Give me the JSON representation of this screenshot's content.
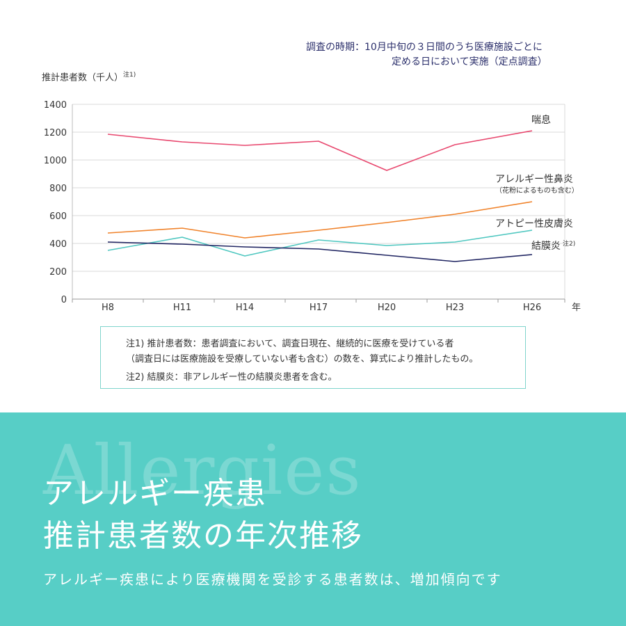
{
  "survey_note": {
    "line1": "調査の時期：10月中旬の３日間のうち医療施設ごとに",
    "line2": "定める日において実施（定点調査）"
  },
  "chart_data": {
    "type": "line",
    "ylabel": "推計患者数（千人）",
    "ylabel_note": "注1)",
    "xlabel": "年",
    "categories": [
      "H8",
      "H11",
      "H14",
      "H17",
      "H20",
      "H23",
      "H26"
    ],
    "ylim": [
      0,
      1400
    ],
    "yticks": [
      0,
      200,
      400,
      600,
      800,
      1000,
      1200,
      1400
    ],
    "grid": true,
    "series": [
      {
        "name": "喘息",
        "color": "#e8476e",
        "values": [
          1185,
          1130,
          1105,
          1135,
          925,
          1110,
          1210
        ]
      },
      {
        "name": "アレルギー性鼻炎",
        "sub": "（花粉によるものも含む）",
        "color": "#f0822a",
        "values": [
          475,
          510,
          440,
          495,
          550,
          610,
          700
        ]
      },
      {
        "name": "アトピー性皮膚炎",
        "color": "#4fc7c0",
        "values": [
          350,
          445,
          310,
          425,
          385,
          410,
          495
        ]
      },
      {
        "name": "結膜炎",
        "note": "注2)",
        "color": "#1f2461",
        "values": [
          410,
          395,
          375,
          360,
          315,
          270,
          320
        ]
      }
    ]
  },
  "footnotes": {
    "f1a": "注1) 推計患者数：患者調査において、調査日現在、継続的に医療を受けている者",
    "f1b": "（調査日には医療施設を受療していない者も含む）の数を、算式により推計したもの。",
    "f2": "注2) 結膜炎：非アレルギー性の結膜炎患者を含む。"
  },
  "banner": {
    "bg_word": "Allergies",
    "title1": "アレルギー疾患",
    "title2": "推計患者数の年次推移",
    "subtitle": "アレルギー疾患により医療機関を受診する患者数は、増加傾向です",
    "color": "#57cec6"
  }
}
